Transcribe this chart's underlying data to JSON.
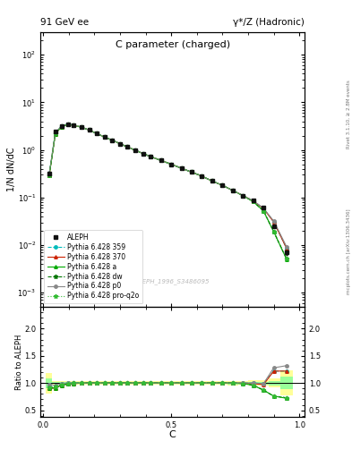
{
  "title_top": "91 GeV ee",
  "title_right": "γ*/Z (Hadronic)",
  "plot_title": "C parameter (charged)",
  "xlabel": "C",
  "ylabel_main": "1/N dN/dC",
  "ylabel_ratio": "Ratio to ALEPH",
  "watermark": "ALEPH_1996_S3486095",
  "right_label_1": "Rivet 3.1.10, ≥ 2.8M events",
  "right_label_2": "mcplots.cern.ch [arXiv:1306.3436]",
  "C_centers": [
    0.024,
    0.048,
    0.072,
    0.096,
    0.12,
    0.15,
    0.18,
    0.21,
    0.24,
    0.27,
    0.3,
    0.33,
    0.36,
    0.39,
    0.42,
    0.46,
    0.5,
    0.54,
    0.58,
    0.62,
    0.66,
    0.7,
    0.74,
    0.78,
    0.82,
    0.86,
    0.9,
    0.95
  ],
  "ALEPH_y": [
    0.32,
    2.4,
    3.2,
    3.5,
    3.3,
    3.0,
    2.6,
    2.2,
    1.85,
    1.6,
    1.35,
    1.15,
    0.98,
    0.84,
    0.72,
    0.6,
    0.5,
    0.41,
    0.34,
    0.28,
    0.22,
    0.18,
    0.14,
    0.11,
    0.085,
    0.06,
    0.025,
    0.007
  ],
  "ALEPH_err": [
    0.03,
    0.05,
    0.06,
    0.06,
    0.055,
    0.05,
    0.04,
    0.035,
    0.03,
    0.025,
    0.022,
    0.019,
    0.016,
    0.014,
    0.012,
    0.01,
    0.009,
    0.007,
    0.006,
    0.005,
    0.004,
    0.003,
    0.003,
    0.002,
    0.002,
    0.0015,
    0.001,
    0.0008
  ],
  "py359_ratio": [
    0.97,
    0.96,
    0.99,
    1.0,
    1.0,
    1.0,
    1.0,
    1.0,
    1.0,
    1.0,
    1.0,
    1.0,
    1.0,
    1.0,
    1.0,
    1.0,
    1.0,
    1.0,
    1.0,
    1.0,
    1.0,
    1.0,
    1.0,
    1.0,
    1.0,
    0.99,
    1.22,
    1.22
  ],
  "py370_ratio": [
    0.9,
    0.91,
    0.96,
    0.98,
    0.99,
    1.0,
    1.0,
    1.0,
    1.0,
    1.0,
    1.0,
    1.0,
    1.0,
    1.0,
    1.0,
    1.0,
    1.0,
    1.0,
    1.0,
    1.0,
    1.0,
    1.0,
    1.0,
    1.0,
    0.99,
    0.97,
    1.22,
    1.22
  ],
  "pya_ratio": [
    0.9,
    0.91,
    0.96,
    0.98,
    0.99,
    1.0,
    1.0,
    1.0,
    1.0,
    1.0,
    1.0,
    1.0,
    1.0,
    1.0,
    1.0,
    1.0,
    1.0,
    1.0,
    1.0,
    1.0,
    1.0,
    1.0,
    1.0,
    0.99,
    0.96,
    0.87,
    0.76,
    0.72
  ],
  "pydw_ratio": [
    0.92,
    0.93,
    0.97,
    0.99,
    1.0,
    1.0,
    1.0,
    1.0,
    1.0,
    1.0,
    1.0,
    1.0,
    1.0,
    1.0,
    1.0,
    1.0,
    1.0,
    1.0,
    1.0,
    1.0,
    1.0,
    1.0,
    1.0,
    0.99,
    0.96,
    0.87,
    0.76,
    0.73
  ],
  "pyp0_ratio": [
    0.97,
    0.96,
    0.99,
    1.0,
    1.0,
    1.0,
    1.0,
    1.0,
    1.0,
    1.0,
    1.0,
    1.0,
    1.0,
    1.0,
    1.0,
    1.0,
    1.0,
    1.0,
    1.0,
    1.0,
    1.0,
    1.0,
    1.0,
    1.0,
    1.0,
    0.99,
    1.28,
    1.32
  ],
  "pyproq2o_ratio": [
    0.92,
    0.93,
    0.97,
    0.99,
    1.0,
    1.0,
    1.0,
    1.0,
    1.0,
    1.0,
    1.0,
    1.0,
    1.0,
    1.0,
    1.0,
    1.0,
    1.0,
    1.0,
    1.0,
    1.0,
    1.0,
    1.0,
    1.0,
    0.99,
    0.96,
    0.87,
    0.76,
    0.73
  ],
  "bg_color": "#ffffff",
  "band_yellow": "#ffff99",
  "band_green": "#99ff99",
  "ylim_main": [
    0.0005,
    300.0
  ],
  "ylim_ratio": [
    0.38,
    2.4
  ],
  "series": [
    {
      "label": "ALEPH",
      "color": "#111111",
      "marker": "s",
      "ms": 3.5,
      "ls": "none",
      "lw": 1.0,
      "zorder": 10
    },
    {
      "label": "Pythia 6.428 359",
      "color": "#00bbbb",
      "marker": "o",
      "ms": 2.5,
      "ls": "--",
      "lw": 0.8,
      "zorder": 5
    },
    {
      "label": "Pythia 6.428 370",
      "color": "#cc2200",
      "marker": "^",
      "ms": 2.5,
      "ls": "-",
      "lw": 0.8,
      "zorder": 5
    },
    {
      "label": "Pythia 6.428 a",
      "color": "#00aa00",
      "marker": "^",
      "ms": 2.5,
      "ls": "-",
      "lw": 0.8,
      "zorder": 5
    },
    {
      "label": "Pythia 6.428 dw",
      "color": "#007700",
      "marker": "*",
      "ms": 3.5,
      "ls": "--",
      "lw": 0.8,
      "zorder": 5
    },
    {
      "label": "Pythia 6.428 p0",
      "color": "#888888",
      "marker": "o",
      "ms": 2.5,
      "ls": "-",
      "lw": 0.8,
      "zorder": 5
    },
    {
      "label": "Pythia 6.428 pro-q2o",
      "color": "#33bb33",
      "marker": "*",
      "ms": 3.5,
      "ls": ":",
      "lw": 0.8,
      "zorder": 5
    }
  ]
}
